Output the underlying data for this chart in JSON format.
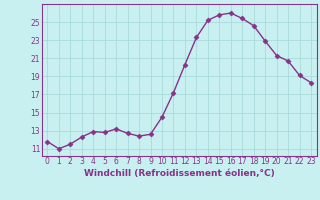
{
  "x": [
    0,
    1,
    2,
    3,
    4,
    5,
    6,
    7,
    8,
    9,
    10,
    11,
    12,
    13,
    14,
    15,
    16,
    17,
    18,
    19,
    20,
    21,
    22,
    23
  ],
  "y": [
    11.8,
    11.0,
    11.5,
    12.3,
    12.9,
    12.8,
    13.2,
    12.7,
    12.4,
    12.6,
    14.5,
    17.2,
    20.3,
    23.3,
    25.2,
    25.8,
    26.0,
    25.4,
    24.6,
    22.9,
    21.3,
    20.7,
    19.1,
    18.3
  ],
  "line_color": "#883388",
  "marker": "D",
  "markersize": 2.5,
  "linewidth": 1.0,
  "bg_color": "#c8f0f0",
  "grid_color": "#a8dada",
  "xlabel": "Windchill (Refroidissement éolien,°C)",
  "ylabel_ticks": [
    11,
    13,
    15,
    17,
    19,
    21,
    23,
    25
  ],
  "ylim": [
    10.2,
    27.0
  ],
  "xlim": [
    -0.5,
    23.5
  ],
  "xticks": [
    0,
    1,
    2,
    3,
    4,
    5,
    6,
    7,
    8,
    9,
    10,
    11,
    12,
    13,
    14,
    15,
    16,
    17,
    18,
    19,
    20,
    21,
    22,
    23
  ],
  "tick_fontsize": 5.5,
  "xlabel_fontsize": 6.5,
  "tick_color": "#883388",
  "spine_color": "#883388"
}
